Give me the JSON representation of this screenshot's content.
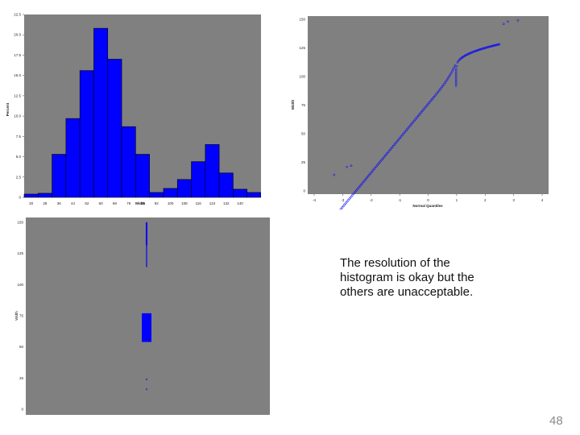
{
  "chart_data": [
    {
      "type": "bar",
      "ylabel": "Percent",
      "xlabel": "Width",
      "yticks": [
        "0",
        "2.5",
        "5.0",
        "7.5",
        "10.0",
        "12.5",
        "15.0",
        "17.5",
        "20.0",
        "22.5"
      ],
      "xticks": [
        "20",
        "28",
        "36",
        "44",
        "52",
        "60",
        "68",
        "76",
        "84",
        "92",
        "100",
        "108",
        "116",
        "124",
        "132",
        "140"
      ],
      "ylim": [
        0,
        22.5
      ],
      "bins_start": 20,
      "bin_width": 8,
      "values": [
        0.4,
        0.5,
        5.3,
        9.7,
        15.6,
        20.8,
        17.0,
        8.7,
        5.3,
        0.6,
        1.1,
        2.2,
        4.4,
        6.5,
        3.0,
        1.0,
        0.6
      ],
      "bar_color": "#0000ff",
      "background": "#808080"
    },
    {
      "type": "scatter",
      "xlabel": "Normal Quantiles",
      "ylabel": "Width",
      "xticks": [
        "-4",
        "-3",
        "-2",
        "-1",
        "0",
        "1",
        "2",
        "3",
        "4"
      ],
      "yticks": [
        "0",
        "25",
        "50",
        "75",
        "100",
        "125",
        "150"
      ],
      "xlim": [
        -4,
        4
      ],
      "ylim": [
        0,
        150
      ],
      "marker_color": "#0000ff",
      "background": "#808080"
    },
    {
      "type": "boxplot",
      "ylabel": "Width",
      "yticks": [
        "0",
        "25",
        "50",
        "75",
        "100",
        "125",
        "150"
      ],
      "ylim": [
        0,
        150
      ],
      "box": {
        "q1": 54,
        "q3": 77
      },
      "upper_whisker_points_from": 114,
      "upper_whisker_points_to": 150,
      "outliers": [
        24,
        16
      ],
      "marker_color": "#0000ff",
      "background": "#808080"
    }
  ],
  "caption": [
    "The resolution of the",
    "histogram is okay but the",
    "others are unacceptable."
  ],
  "slide_number": "48"
}
